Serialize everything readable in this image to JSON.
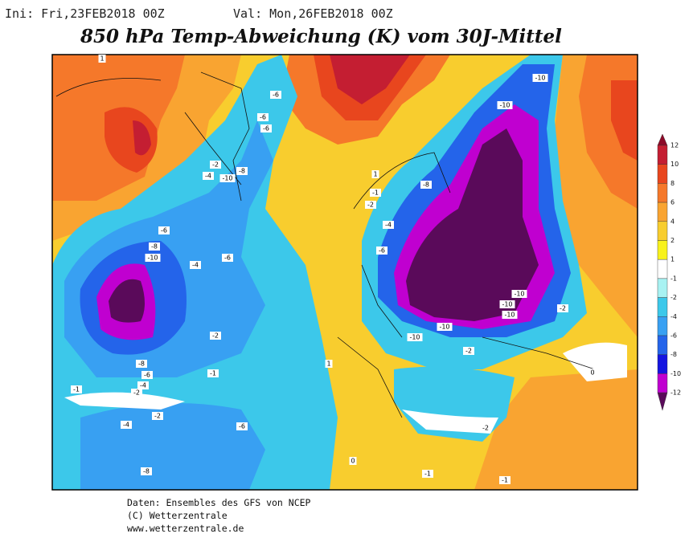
{
  "header": {
    "init": "Ini: Fri,23FEB2018 00Z",
    "valid": "Val: Mon,26FEB2018 00Z",
    "title": "850 hPa Temp-Abweichung (K) vom 30J-Mittel"
  },
  "colorbar": {
    "labels": [
      "12",
      "10",
      "8",
      "6",
      "4",
      "2",
      "1",
      "-1",
      "-2",
      "-4",
      "-6",
      "-8",
      "-10",
      "-12"
    ],
    "colors": [
      "#8c0a28",
      "#c41e32",
      "#e8461e",
      "#f5782a",
      "#f9a431",
      "#f8cd2e",
      "#f8f21c",
      "#ffffff",
      "#a8f2f2",
      "#3cc8ea",
      "#38a0f2",
      "#2464ea",
      "#1414e0",
      "#c000d0",
      "#5a0a5a"
    ]
  },
  "map": {
    "contour_labels": [
      "-10",
      "-10",
      "-6",
      "-6",
      "-6",
      "-8",
      "-4",
      "-6",
      "-6",
      "-8",
      "-10",
      "-4",
      "-6",
      "-2",
      "-1",
      "-8",
      "-6",
      "-4",
      "-2",
      "-2",
      "-4",
      "-6",
      "-8",
      "-10",
      "-10",
      "-10",
      "-10",
      "-10",
      "-2",
      "-2",
      "1",
      "1",
      "-1",
      "-2",
      "-2",
      "-2",
      "-4",
      "-8",
      "-10",
      "1",
      "-1",
      "-1",
      "-1",
      "0",
      "0"
    ]
  },
  "footer": {
    "lines": [
      "Daten: Ensembles des GFS von NCEP",
      "(C) Wetterzentrale",
      "www.wetterzentrale.de"
    ]
  }
}
